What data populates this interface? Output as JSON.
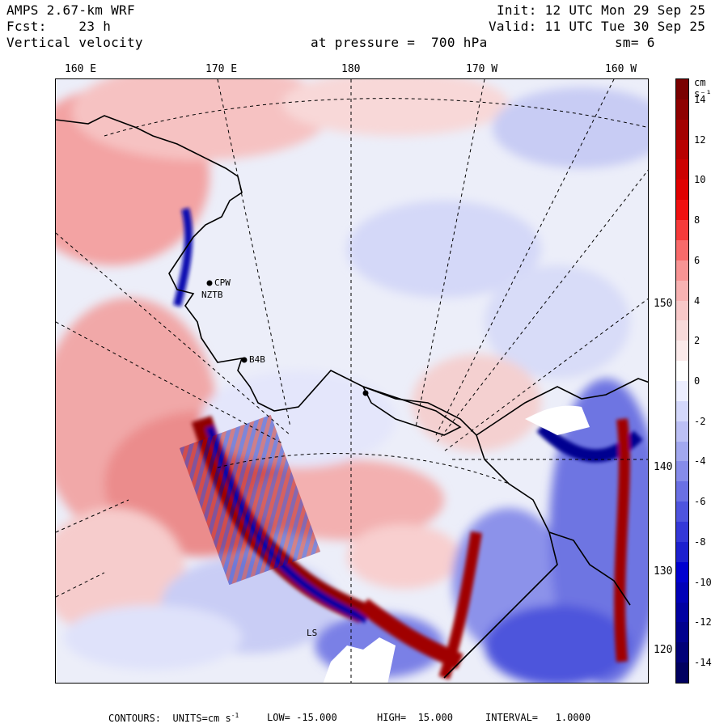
{
  "header": {
    "model": "AMPS 2.67-km WRF",
    "init": "Init: 12 UTC Mon 29 Sep 25",
    "fcst": "Fcst:    23 h",
    "valid": "Valid: 11 UTC Tue 30 Sep 25",
    "field": "Vertical velocity",
    "pressure": "at pressure =  700 hPa",
    "smooth": "sm= 6"
  },
  "top_labels": [
    "160 E",
    "170 E",
    "180",
    "170 W",
    "160 W"
  ],
  "right_labels": [
    "150 W",
    "140 W",
    "130 W",
    "120 W"
  ],
  "stations": [
    "CPW",
    "NZTB",
    "B4B",
    "LS"
  ],
  "colorbar": {
    "units": "cm s⁻¹",
    "ticks": [
      "14",
      "12",
      "10",
      "8",
      "6",
      "4",
      "2",
      "0",
      "-2",
      "-4",
      "-6",
      "-8",
      "-10",
      "-12",
      "-14"
    ],
    "colors": [
      "#7a0000",
      "#8e0000",
      "#a30000",
      "#b80000",
      "#cc0000",
      "#e00000",
      "#f01010",
      "#f63a3a",
      "#f86a6a",
      "#f89494",
      "#f8b2b2",
      "#f8c8c8",
      "#f8dada",
      "#fbeaea",
      "#ffffff",
      "#eceeff",
      "#d4d8fb",
      "#bcc0f5",
      "#a2a8ef",
      "#868cea",
      "#6a70e4",
      "#4e54de",
      "#3438d8",
      "#1c20cf",
      "#0000d0",
      "#0000b8",
      "#0000a2",
      "#00008e",
      "#000078",
      "#000060"
    ]
  },
  "footer": {
    "contours": "CONTOURS:  UNITS=cm s",
    "units_sup": "-1",
    "low": "LOW= -15.000",
    "high": "HIGH=  15.000",
    "interval": "INTERVAL=   1.0000"
  }
}
